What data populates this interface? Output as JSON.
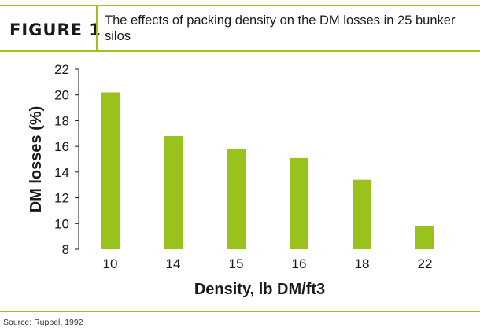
{
  "figure_label": "FIGURE 1",
  "source": "Source: Ruppel, 1992",
  "colors": {
    "accent": "#9bc31c",
    "bar": "#99c21c",
    "text": "#1a1a1a"
  },
  "chart_data": {
    "type": "bar",
    "title": "The effects of packing density on the DM losses in 25 bunker silos",
    "xlabel": "Density, lb DM/ft3",
    "ylabel": "DM losses (%)",
    "categories": [
      "10",
      "14",
      "15",
      "16",
      "18",
      "22"
    ],
    "values": [
      20.2,
      16.8,
      15.8,
      15.1,
      13.4,
      9.8
    ],
    "ylim": [
      8,
      22
    ],
    "yticks": [
      "8",
      "10",
      "12",
      "14",
      "16",
      "18",
      "20",
      "22"
    ],
    "grid": false,
    "legend": "none"
  }
}
